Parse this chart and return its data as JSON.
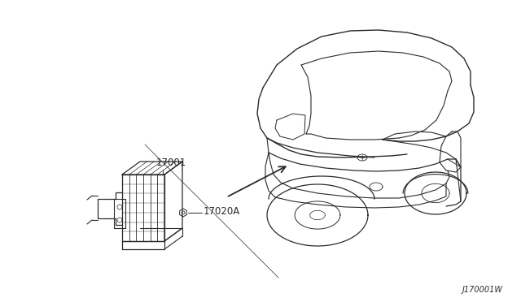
{
  "background_color": "#ffffff",
  "line_color": "#2a2a2a",
  "text_color": "#2a2a2a",
  "diagram_id": "J170001W",
  "label_17001": "17001",
  "label_17020A": "17020A",
  "figsize": [
    6.4,
    3.72
  ],
  "dpi": 100
}
